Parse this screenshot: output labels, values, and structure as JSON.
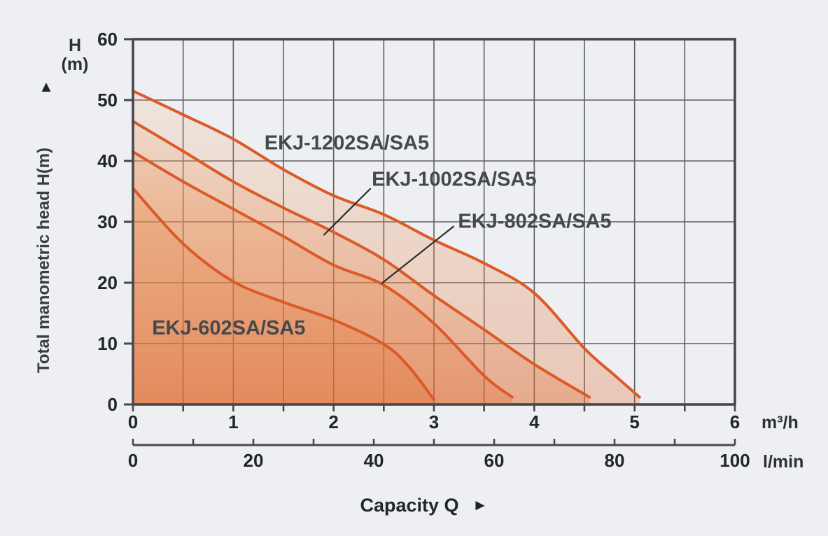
{
  "chart_data": {
    "type": "line",
    "title": "",
    "x_label": "Capacity Q",
    "x_axis_primary": {
      "unit": "m³/h",
      "range": [
        0,
        6
      ],
      "major_ticks": [
        0,
        1,
        2,
        3,
        4,
        5,
        6
      ],
      "minor_tick_step": 0.5
    },
    "x_axis_secondary": {
      "unit": "l/min",
      "range": [
        0,
        100
      ],
      "tick_step": 10,
      "labeled_ticks": [
        0,
        20,
        40,
        60,
        80,
        100
      ]
    },
    "y_axis": {
      "title": "Total manometric head H(m)",
      "corner_label": [
        "H",
        "(m)"
      ],
      "range": [
        0,
        60
      ],
      "tick_step": 10,
      "ticks": [
        0,
        10,
        20,
        30,
        40,
        50,
        60
      ]
    },
    "grid": true,
    "legend_position": "inline-annotations",
    "series": [
      {
        "name": "EKJ-1202SA/SA5",
        "points": [
          [
            0,
            51.5
          ],
          [
            0.5,
            47.6
          ],
          [
            1,
            43.6
          ],
          [
            1.5,
            38.6
          ],
          [
            2,
            34.3
          ],
          [
            2.5,
            31.2
          ],
          [
            3,
            27.0
          ],
          [
            3.5,
            23.2
          ],
          [
            4,
            18.3
          ],
          [
            4.5,
            9.2
          ],
          [
            4.8,
            4.8
          ],
          [
            5.05,
            1.2
          ]
        ],
        "max_flow_m3h": 5.05,
        "shutoff_head_m": 51.5,
        "label_anchor_q": 1.31,
        "label_anchor_h": 41.9,
        "callout": null
      },
      {
        "name": "EKJ-1002SA/SA5",
        "points": [
          [
            0,
            46.5
          ],
          [
            0.5,
            41.6
          ],
          [
            1,
            36.6
          ],
          [
            1.5,
            32.3
          ],
          [
            2,
            28.3
          ],
          [
            2.5,
            23.8
          ],
          [
            3,
            17.9
          ],
          [
            3.5,
            12.3
          ],
          [
            4,
            6.6
          ],
          [
            4.55,
            1.2
          ]
        ],
        "max_flow_m3h": 4.55,
        "shutoff_head_m": 46.5,
        "label_anchor_q": 2.38,
        "label_anchor_h": 35.9,
        "callout": {
          "q1": 2.37,
          "h1": 35.5,
          "q2": 1.9,
          "h2": 27.8
        }
      },
      {
        "name": "EKJ-802SA/SA5",
        "points": [
          [
            0,
            41.5
          ],
          [
            0.5,
            36.6
          ],
          [
            1,
            32.1
          ],
          [
            1.5,
            27.6
          ],
          [
            2,
            22.9
          ],
          [
            2.5,
            19.6
          ],
          [
            3,
            13.3
          ],
          [
            3.5,
            4.7
          ],
          [
            3.78,
            1.2
          ]
        ],
        "max_flow_m3h": 3.78,
        "shutoff_head_m": 41.5,
        "label_anchor_q": 3.24,
        "label_anchor_h": 29.0,
        "callout": {
          "q1": 3.2,
          "h1": 29.3,
          "q2": 2.48,
          "h2": 19.9
        }
      },
      {
        "name": "EKJ-602SA/SA5",
        "points": [
          [
            0,
            35.5
          ],
          [
            0.5,
            26.4
          ],
          [
            1,
            20.2
          ],
          [
            1.5,
            16.8
          ],
          [
            2,
            13.9
          ],
          [
            2.5,
            9.9
          ],
          [
            2.75,
            6.2
          ],
          [
            3.0,
            0.8
          ]
        ],
        "max_flow_m3h": 3.0,
        "shutoff_head_m": 35.5,
        "label_anchor_q": 0.19,
        "label_anchor_h": 11.5,
        "callout": null
      }
    ],
    "colors": {
      "curve": "#db5a28",
      "grid": "#5c5e61",
      "border": "#46484a",
      "background": "#edeff2",
      "area_gradient_top": "#f5c49a",
      "area_gradient_bottom": "#e06a2e",
      "callout_line": "#2b2d2f",
      "tick_text": "#232629"
    },
    "arrows": {
      "up": "▲",
      "right": "►"
    }
  }
}
